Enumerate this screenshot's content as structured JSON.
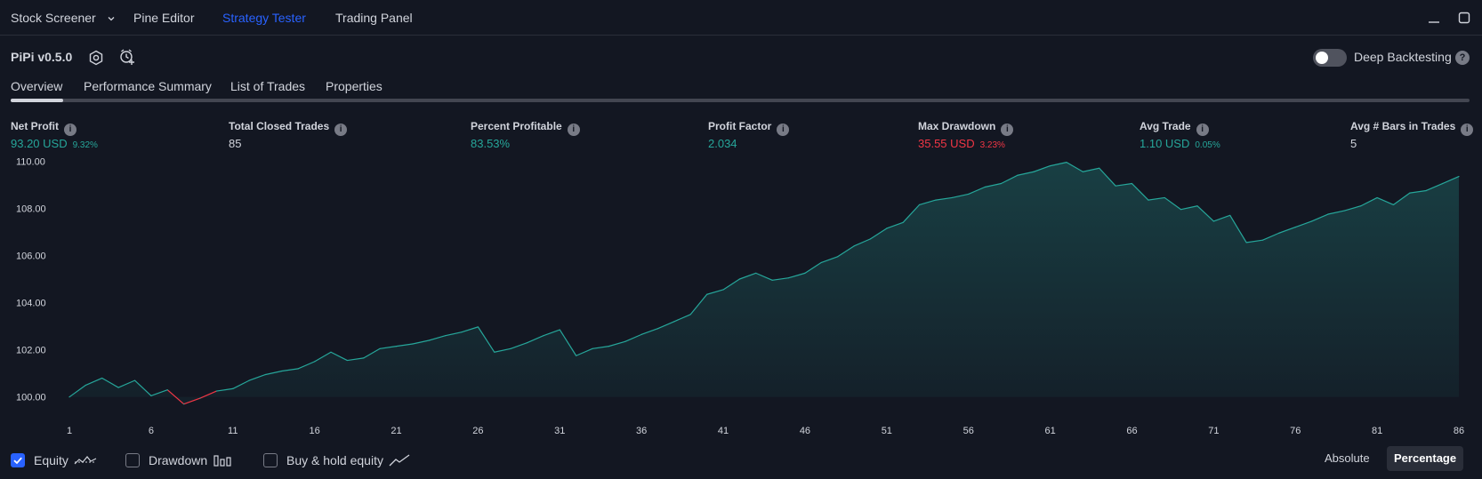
{
  "topbar": {
    "tabs": [
      {
        "label": "Stock Screener"
      },
      {
        "label": "Pine Editor"
      },
      {
        "label": "Strategy Tester"
      },
      {
        "label": "Trading Panel"
      }
    ]
  },
  "strategy": {
    "name": "PiPi v0.5.0",
    "deep_backtesting_label": "Deep Backtesting",
    "deep_backtesting_enabled": false
  },
  "subtabs": [
    {
      "label": "Overview"
    },
    {
      "label": "Performance Summary"
    },
    {
      "label": "List of Trades"
    },
    {
      "label": "Properties"
    }
  ],
  "metrics": [
    {
      "label": "Net Profit",
      "value": "93.20 USD",
      "pct": "9.32%",
      "color": "#26a69a"
    },
    {
      "label": "Total Closed Trades",
      "value": "85",
      "pct": "",
      "color": "#d1d4dc"
    },
    {
      "label": "Percent Profitable",
      "value": "83.53%",
      "pct": "",
      "color": "#26a69a"
    },
    {
      "label": "Profit Factor",
      "value": "2.034",
      "pct": "",
      "color": "#26a69a"
    },
    {
      "label": "Max Drawdown",
      "value": "35.55 USD",
      "pct": "3.23%",
      "color": "#f23645"
    },
    {
      "label": "Avg Trade",
      "value": "1.10 USD",
      "pct": "0.05%",
      "color": "#26a69a"
    },
    {
      "label": "Avg # Bars in Trades",
      "value": "5",
      "pct": "",
      "color": "#d1d4dc"
    }
  ],
  "chart_data": {
    "type": "area",
    "y_tick_labels": [
      "110.00",
      "108.00",
      "106.00",
      "104.00",
      "102.00",
      "100.00"
    ],
    "y_ticks": [
      110,
      108,
      106,
      104,
      102,
      100
    ],
    "x_tick_labels": [
      "1",
      "6",
      "11",
      "16",
      "21",
      "26",
      "31",
      "36",
      "41",
      "46",
      "51",
      "56",
      "61",
      "66",
      "71",
      "76",
      "81",
      "86"
    ],
    "ylim": [
      99.8,
      110.2
    ],
    "xlim": [
      1,
      86
    ],
    "series": [
      {
        "values": [
          100.0,
          100.5,
          100.8,
          100.4,
          100.7,
          100.05,
          100.3,
          99.7,
          99.95,
          100.25,
          100.35,
          100.7,
          100.95,
          101.1,
          101.2,
          101.5,
          101.9,
          101.55,
          101.65,
          102.05,
          102.15,
          102.25,
          102.4,
          102.6,
          102.75,
          102.97,
          101.9,
          102.05,
          102.3,
          102.6,
          102.85,
          101.75,
          102.05,
          102.15,
          102.35,
          102.65,
          102.9,
          103.2,
          103.5,
          104.35,
          104.55,
          105.0,
          105.25,
          104.95,
          105.05,
          105.25,
          105.7,
          105.95,
          106.4,
          106.7,
          107.15,
          107.4,
          108.15,
          108.35,
          108.45,
          108.6,
          108.9,
          109.05,
          109.4,
          109.55,
          109.8,
          109.95,
          109.55,
          109.7,
          108.95,
          109.05,
          108.35,
          108.45,
          107.95,
          108.1,
          107.45,
          107.7,
          106.55,
          106.65,
          106.95,
          107.2,
          107.45,
          107.75,
          107.9,
          108.1,
          108.45,
          108.15,
          108.65,
          108.75,
          109.05,
          109.35
        ]
      }
    ],
    "colors": {
      "line": "#26a69a",
      "fill": "#26a69a",
      "drawdown_line": "#f23645"
    }
  },
  "legend": {
    "equity": {
      "label": "Equity",
      "checked": true
    },
    "drawdown": {
      "label": "Drawdown",
      "checked": false
    },
    "buyhold": {
      "label": "Buy & hold equity",
      "checked": false
    }
  },
  "mode": {
    "absolute_label": "Absolute",
    "percentage_label": "Percentage",
    "active": "percentage"
  }
}
